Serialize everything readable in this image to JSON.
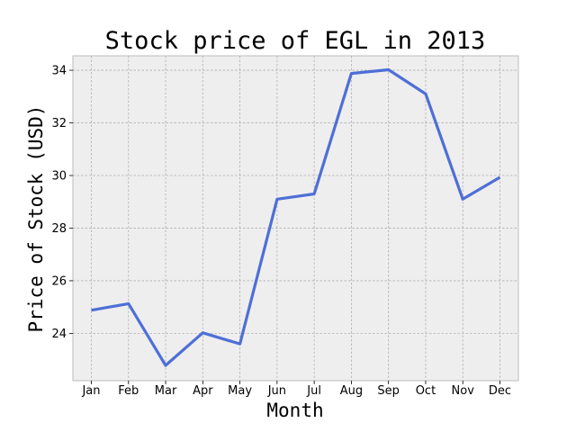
{
  "chart_data": {
    "type": "line",
    "title": "Stock price of EGL in 2013",
    "xlabel": "Month",
    "ylabel": "Price of Stock (USD)",
    "categories": [
      "Jan",
      "Feb",
      "Mar",
      "Apr",
      "May",
      "Jun",
      "Jul",
      "Aug",
      "Sep",
      "Oct",
      "Nov",
      "Dec"
    ],
    "series": [
      {
        "values": [
          24.88,
          25.13,
          22.78,
          24.02,
          23.6,
          29.1,
          29.3,
          33.88,
          34.02,
          33.1,
          29.1,
          29.93
        ],
        "color": "#4e6fd6"
      }
    ],
    "ylim": [
      22.2,
      34.55
    ],
    "yticks": [
      24,
      26,
      28,
      30,
      32,
      34
    ],
    "grid": true,
    "background": "#eeeeee"
  }
}
